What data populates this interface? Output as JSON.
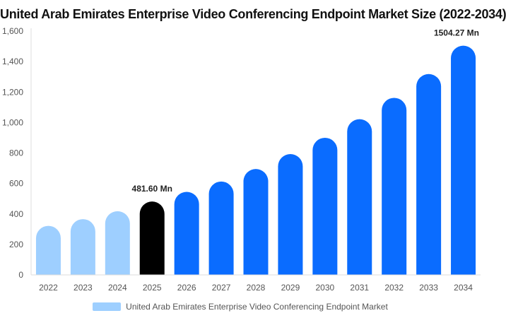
{
  "chart_data": {
    "type": "bar",
    "title": "United Arab Emirates Enterprise Video Conferencing Endpoint Market Size (2022-2034)",
    "categories": [
      "2022",
      "2023",
      "2024",
      "2025",
      "2026",
      "2027",
      "2028",
      "2029",
      "2030",
      "2031",
      "2032",
      "2033",
      "2034"
    ],
    "series": [
      {
        "name": "United Arab Emirates Enterprise Video Conferencing Endpoint Market",
        "values": [
          322,
          366,
          418,
          481.6,
          545,
          613,
          695,
          793,
          900,
          1022,
          1162,
          1318,
          1504.27
        ]
      }
    ],
    "data_labels": [
      {
        "index": 3,
        "text": "481.60 Mn"
      },
      {
        "index": 12,
        "text": "1504.27 Mn"
      }
    ],
    "y_ticks": [
      "0",
      "200",
      "400",
      "600",
      "800",
      "1,000",
      "1,200",
      "1,400",
      "1,600"
    ],
    "ylim": [
      0,
      1600
    ],
    "grid": false,
    "legend_position": "bottom",
    "colors": {
      "historical": "#9ecfff",
      "current": "#000000",
      "forecast": "#0a6cff",
      "legend": "#9ecfff"
    },
    "bar_color_index": [
      "historical",
      "historical",
      "historical",
      "current",
      "forecast",
      "forecast",
      "forecast",
      "forecast",
      "forecast",
      "forecast",
      "forecast",
      "forecast",
      "forecast"
    ]
  }
}
